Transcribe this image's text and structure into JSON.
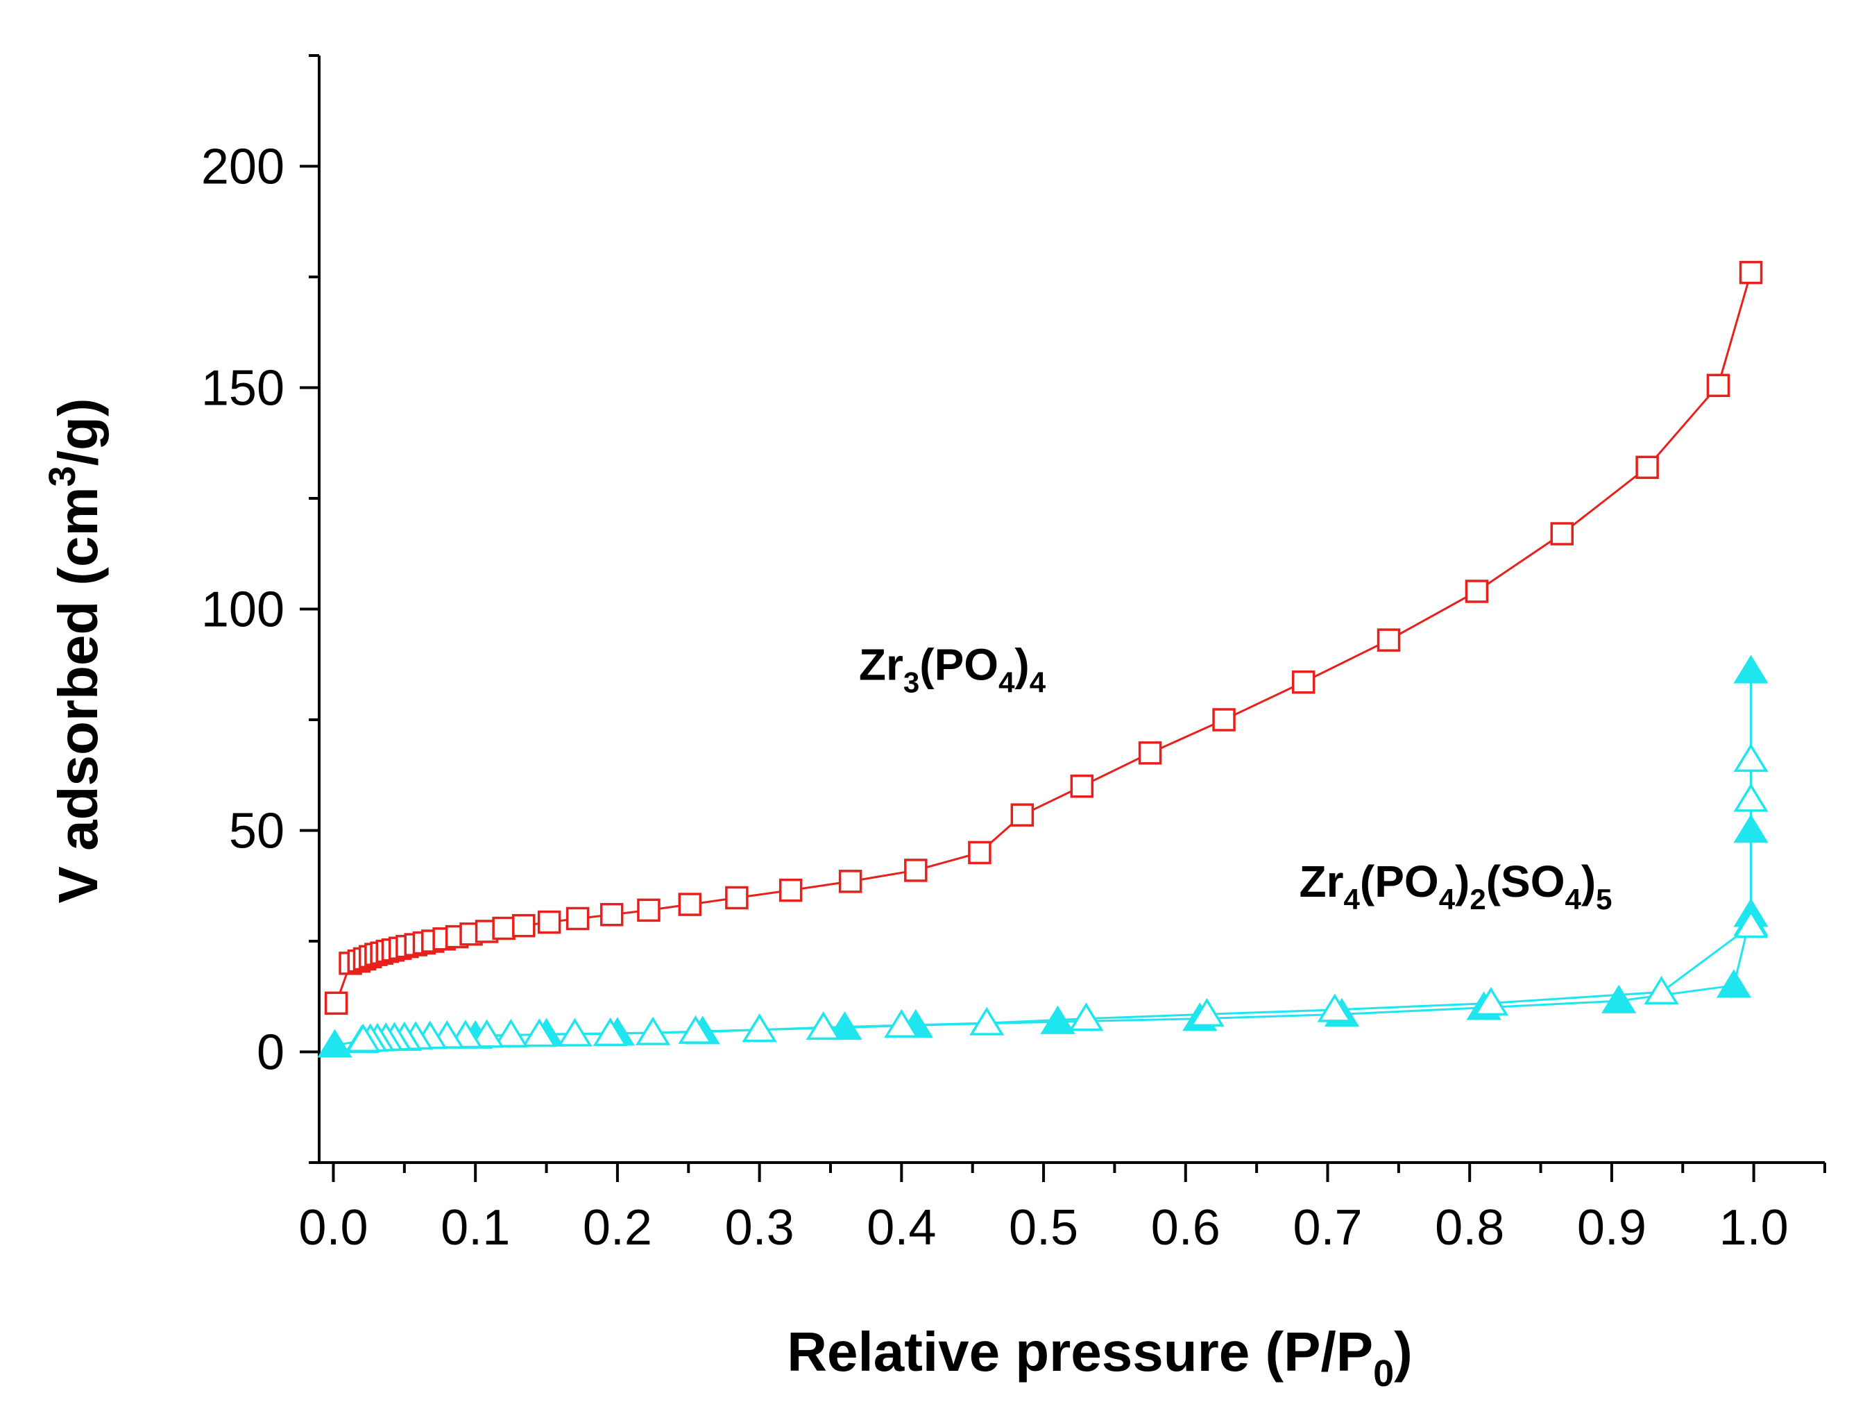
{
  "chart_data": {
    "type": "scatter",
    "xlabel": {
      "main": "Relative pressure (P/P",
      "sub": "0",
      "tail": ")"
    },
    "ylabel": {
      "main": "V adsorbed (cm",
      "sup": "3",
      "tail": "/g)"
    },
    "xlim": [
      -0.01,
      1.05
    ],
    "ylim": [
      -25,
      225
    ],
    "xticks": [
      0.0,
      0.1,
      0.2,
      0.3,
      0.4,
      0.5,
      0.6,
      0.7,
      0.8,
      0.9,
      1.0
    ],
    "xtick_labels": [
      "0.0",
      "0.1",
      "0.2",
      "0.3",
      "0.4",
      "0.5",
      "0.6",
      "0.7",
      "0.8",
      "0.9",
      "1.0"
    ],
    "yticks": [
      0,
      50,
      100,
      150,
      200
    ],
    "ytick_labels": [
      "0",
      "50",
      "100",
      "150",
      "200"
    ],
    "annotations": [
      {
        "parts": [
          [
            "Zr",
            ""
          ],
          [
            "3",
            "sub"
          ],
          [
            "(PO",
            ""
          ],
          [
            "4",
            "sub"
          ],
          [
            ")",
            ""
          ],
          [
            "4",
            "sub"
          ]
        ],
        "x": 0.37,
        "y": 84
      },
      {
        "parts": [
          [
            "Zr",
            ""
          ],
          [
            "4",
            "sub"
          ],
          [
            "(PO",
            ""
          ],
          [
            "4",
            "sub"
          ],
          [
            ")",
            ""
          ],
          [
            "2",
            "sub"
          ],
          [
            "(SO",
            ""
          ],
          [
            "4",
            "sub"
          ],
          [
            ")",
            ""
          ],
          [
            "5",
            "sub"
          ]
        ],
        "x": 0.68,
        "y": 35
      }
    ],
    "series": [
      {
        "name": "Zr3(PO4)4",
        "color": "#e8201c",
        "marker": "square-open",
        "x": [
          0.002,
          0.012,
          0.018,
          0.022,
          0.026,
          0.03,
          0.034,
          0.038,
          0.042,
          0.047,
          0.052,
          0.058,
          0.064,
          0.07,
          0.078,
          0.087,
          0.097,
          0.108,
          0.12,
          0.134,
          0.152,
          0.172,
          0.196,
          0.222,
          0.251,
          0.284,
          0.322,
          0.364,
          0.41,
          0.455,
          0.485,
          0.527,
          0.575,
          0.627,
          0.683,
          0.743,
          0.805,
          0.865,
          0.925,
          0.975,
          0.998
        ],
        "y": [
          11,
          20,
          20.5,
          21,
          21.5,
          22,
          22.3,
          22.7,
          23,
          23.4,
          23.8,
          24.2,
          24.6,
          25,
          25.5,
          26,
          26.6,
          27.2,
          27.9,
          28.5,
          29.3,
          30.1,
          31,
          32,
          33.3,
          34.8,
          36.5,
          38.5,
          41,
          45,
          53.5,
          60,
          67.5,
          75,
          83.5,
          93,
          104,
          117,
          132,
          150.5,
          176
        ]
      },
      {
        "name": "Zr4(PO4)2(SO4)5 adsorption",
        "color": "#1fe6ee",
        "marker": "triangle-filled",
        "x": [
          0.001,
          0.02,
          0.05,
          0.1,
          0.15,
          0.2,
          0.26,
          0.3,
          0.36,
          0.41,
          0.51,
          0.61,
          0.71,
          0.81,
          0.905,
          0.986,
          0.998,
          0.998,
          0.998
        ],
        "y": [
          1.5,
          2.5,
          3,
          3.5,
          4,
          4.2,
          4.5,
          5,
          5.5,
          6,
          6.8,
          7.5,
          8.5,
          10,
          11.5,
          15,
          31,
          50,
          86
        ]
      },
      {
        "name": "Zr4(PO4)2(SO4)5 desorption",
        "color": "#1fe6ee",
        "marker": "triangle-open",
        "x": [
          0.998,
          0.998,
          0.998,
          0.998,
          0.935,
          0.815,
          0.705,
          0.615,
          0.53,
          0.46,
          0.4,
          0.345,
          0.3,
          0.255,
          0.225,
          0.195,
          0.17,
          0.145,
          0.125,
          0.108,
          0.093,
          0.08,
          0.068,
          0.058,
          0.05,
          0.043,
          0.037,
          0.031,
          0.026,
          0.021
        ],
        "y": [
          66,
          57,
          29,
          28.5,
          13.5,
          11,
          9.5,
          8.5,
          7.5,
          6.5,
          6,
          5.5,
          5,
          4.6,
          4.3,
          4.1,
          4,
          3.9,
          3.8,
          3.7,
          3.6,
          3.5,
          3.4,
          3.3,
          3.2,
          3.1,
          3.0,
          2.9,
          2.8,
          2.7
        ]
      }
    ]
  }
}
